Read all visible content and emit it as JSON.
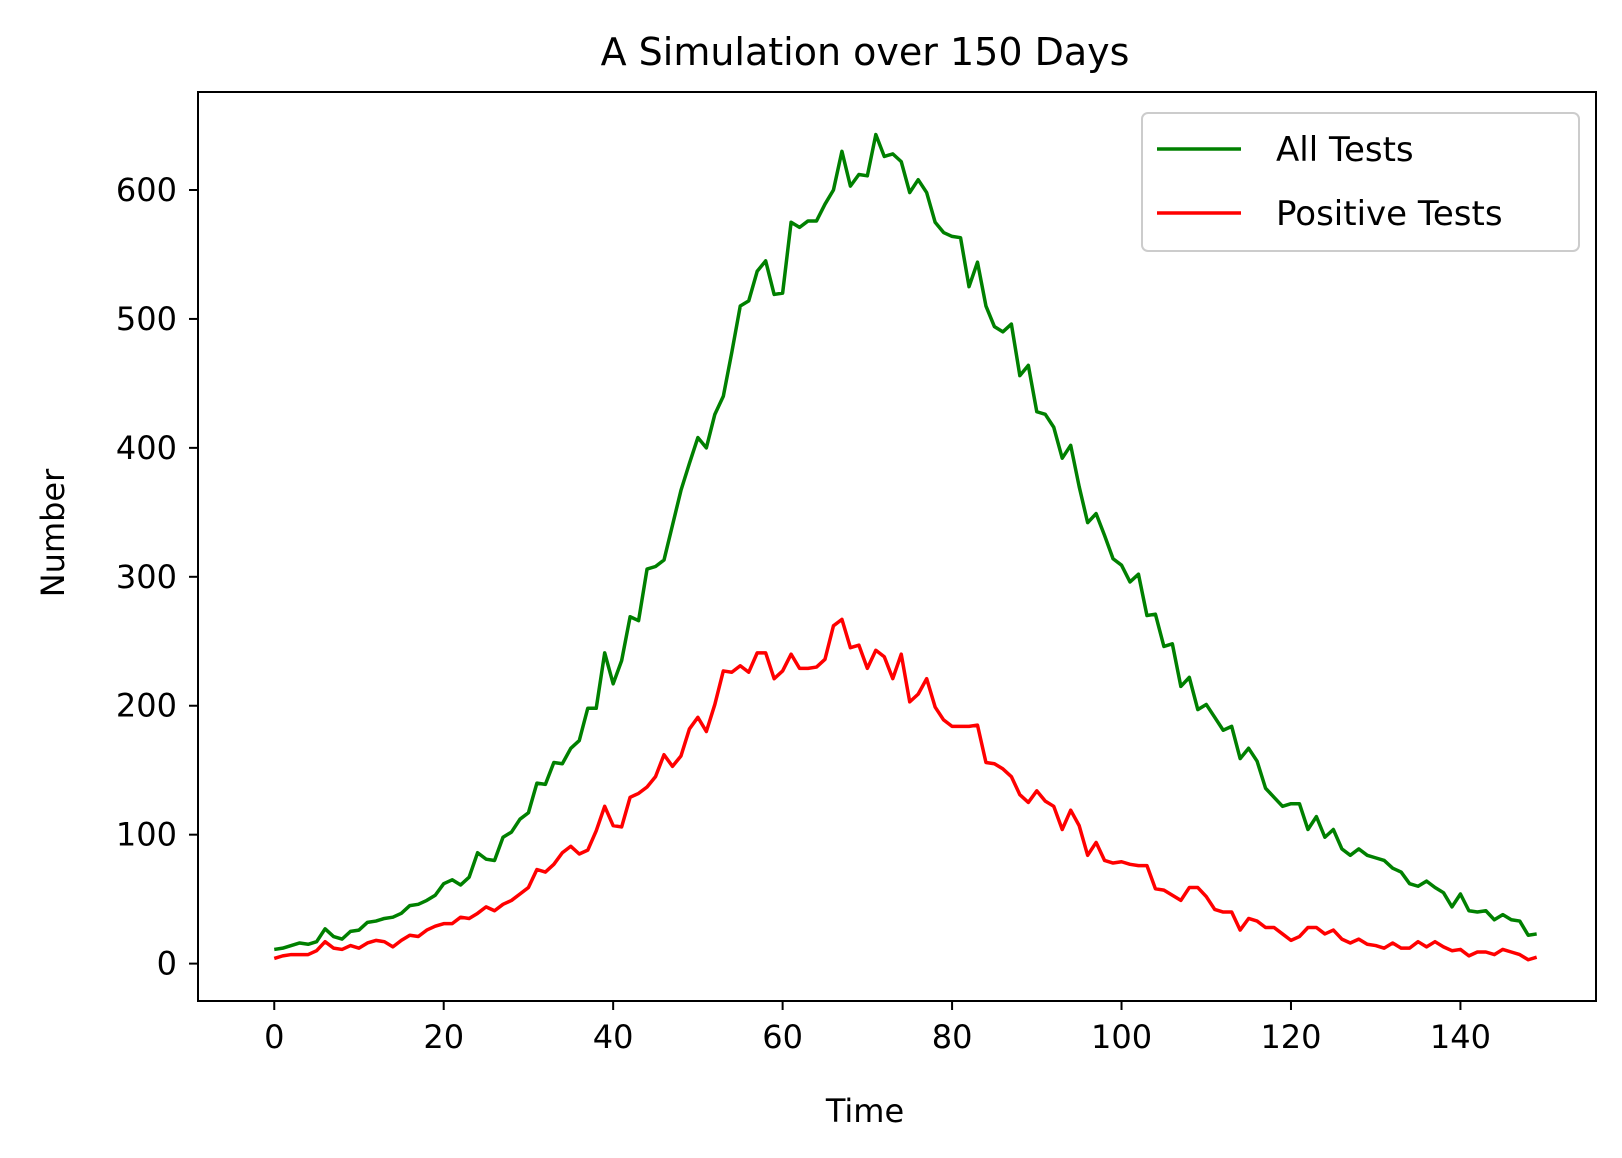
{
  "chart_data": {
    "type": "line",
    "title": "A Simulation over 150 Days",
    "xlabel": "Time",
    "ylabel": "Number",
    "xlim": [
      -9,
      156
    ],
    "ylim": [
      -29,
      676
    ],
    "xticks": [
      0,
      20,
      40,
      60,
      80,
      100,
      120,
      140
    ],
    "yticks": [
      0,
      100,
      200,
      300,
      400,
      500,
      600
    ],
    "grid": false,
    "legend_position": "top-right",
    "x_start": 0,
    "series": [
      {
        "name": "All Tests",
        "color": "#008000",
        "values": [
          11,
          12,
          14,
          16,
          15,
          17,
          27,
          21,
          19,
          25,
          26,
          32,
          33,
          35,
          36,
          39,
          45,
          46,
          49,
          53,
          62,
          65,
          61,
          67,
          86,
          81,
          80,
          98,
          102,
          112,
          117,
          140,
          139,
          156,
          155,
          167,
          173,
          198,
          198,
          241,
          217,
          235,
          269,
          266,
          306,
          308,
          313,
          340,
          367,
          388,
          408,
          400,
          426,
          440,
          474,
          510,
          514,
          537,
          545,
          519,
          520,
          575,
          571,
          576,
          576,
          589,
          600,
          630,
          603,
          612,
          611,
          643,
          626,
          628,
          622,
          598,
          608,
          598,
          575,
          567,
          564,
          563,
          525,
          544,
          510,
          494,
          490,
          496,
          456,
          464,
          428,
          426,
          416,
          392,
          402,
          370,
          342,
          349,
          332,
          314,
          309,
          296,
          302,
          270,
          271,
          246,
          248,
          215,
          222,
          197,
          201,
          191,
          181,
          184,
          159,
          167,
          157,
          136,
          129,
          122,
          124,
          124,
          104,
          114,
          98,
          104,
          89,
          84,
          89,
          84,
          82,
          80,
          74,
          71,
          62,
          60,
          64,
          59,
          55,
          44,
          54,
          41,
          40,
          41,
          34,
          38,
          34,
          33,
          22,
          23
        ]
      },
      {
        "name": "Positive Tests",
        "color": "#ff0000",
        "values": [
          4,
          6,
          7,
          7,
          7,
          10,
          17,
          12,
          11,
          14,
          12,
          16,
          18,
          17,
          13,
          18,
          22,
          21,
          26,
          29,
          31,
          31,
          36,
          35,
          39,
          44,
          41,
          46,
          49,
          54,
          59,
          73,
          71,
          77,
          86,
          91,
          85,
          88,
          103,
          122,
          107,
          106,
          129,
          132,
          137,
          145,
          162,
          153,
          161,
          182,
          191,
          180,
          201,
          227,
          226,
          231,
          226,
          241,
          241,
          221,
          227,
          240,
          229,
          229,
          230,
          236,
          262,
          267,
          245,
          247,
          229,
          243,
          238,
          221,
          240,
          203,
          209,
          221,
          199,
          189,
          184,
          184,
          184,
          185,
          156,
          155,
          151,
          145,
          131,
          125,
          134,
          126,
          122,
          104,
          119,
          107,
          84,
          94,
          80,
          78,
          79,
          77,
          76,
          76,
          58,
          57,
          53,
          49,
          59,
          59,
          52,
          42,
          40,
          40,
          26,
          35,
          33,
          28,
          28,
          23,
          18,
          21,
          28,
          28,
          23,
          26,
          19,
          16,
          19,
          15,
          14,
          12,
          16,
          12,
          12,
          17,
          13,
          17,
          13,
          10,
          11,
          6,
          9,
          9,
          7,
          11,
          9,
          7,
          3,
          5
        ]
      }
    ]
  }
}
